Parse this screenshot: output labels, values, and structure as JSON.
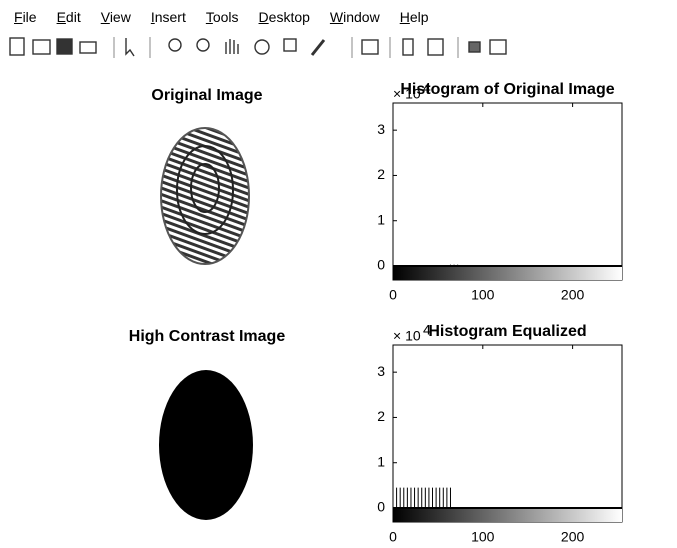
{
  "menu": [
    "File",
    "Edit",
    "View",
    "Insert",
    "Tools",
    "Desktop",
    "Window",
    "Help"
  ],
  "images": [
    {
      "title": "Original Image"
    },
    {
      "title": "High Contrast Image"
    }
  ],
  "chart_data": [
    {
      "type": "stem",
      "title": "Histogram of Original Image",
      "y_multiplier": "× 10",
      "y_exponent": "4",
      "x": [
        60,
        64,
        68,
        72,
        76,
        80
      ],
      "values": [
        0.02,
        0.03,
        0.03,
        0.03,
        0.02,
        0.02
      ],
      "color": "#000000",
      "xlim": [
        0,
        255
      ],
      "ylim": [
        0,
        3.6
      ],
      "xticks": [
        0,
        100,
        200
      ],
      "yticks": [
        0,
        1,
        2,
        3
      ]
    },
    {
      "type": "stem",
      "title": "Histogram Equalized",
      "y_multiplier": "× 10",
      "y_exponent": "4",
      "x": [
        0,
        4,
        8,
        12,
        16,
        20,
        24,
        28,
        32,
        36,
        40,
        44,
        48,
        52,
        56,
        60,
        64
      ],
      "values": [
        0.45,
        0.45,
        0.45,
        0.45,
        0.45,
        0.45,
        0.45,
        0.45,
        0.45,
        0.45,
        0.45,
        0.45,
        0.45,
        0.45,
        0.45,
        0.45,
        0.45
      ],
      "color": "#000000",
      "xlim": [
        0,
        255
      ],
      "ylim": [
        0,
        3.6
      ],
      "xticks": [
        0,
        100,
        200
      ],
      "yticks": [
        0,
        1,
        2,
        3
      ]
    }
  ]
}
